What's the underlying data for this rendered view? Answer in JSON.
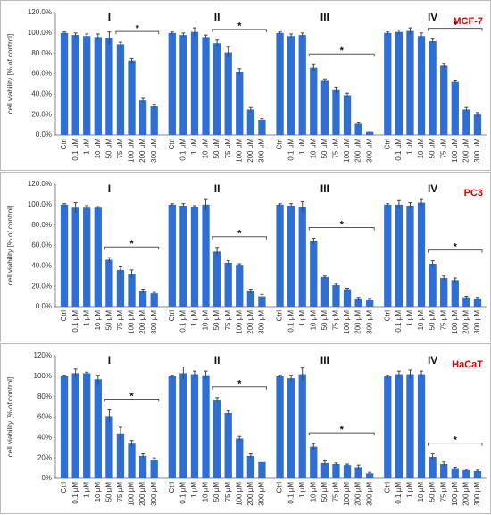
{
  "chart_data": [
    {
      "type": "bar",
      "title": "MCF-7",
      "ylabel": "cell viability [% of control]",
      "categories": [
        "Ctrl",
        "0.1 µM",
        "1 µM",
        "10 µM",
        "50 µM",
        "75 µM",
        "100 µM",
        "200 µM",
        "300 µM"
      ],
      "ylim": [
        0,
        120
      ],
      "yticks": [
        {
          "value": 0,
          "label": "0.0%"
        },
        {
          "value": 20,
          "label": "20.0%"
        },
        {
          "value": 40,
          "label": "40.0%"
        },
        {
          "value": 60,
          "label": "60.0%"
        },
        {
          "value": 80,
          "label": "80.0%"
        },
        {
          "value": 100,
          "label": "100.0%"
        },
        {
          "value": 120,
          "label": "120.0%"
        }
      ],
      "series": [
        {
          "name": "I",
          "color": "#2f6fd4",
          "values": [
            100,
            98,
            97,
            96,
            95,
            89,
            73,
            34,
            28
          ],
          "errors": [
            1,
            2,
            2,
            3,
            6,
            2,
            2,
            2,
            2
          ],
          "bracket": {
            "label": "*",
            "start": "75 µM",
            "end": "300 µM"
          }
        },
        {
          "name": "II",
          "color": "#2f6fd4",
          "values": [
            100,
            98,
            101,
            96,
            90,
            81,
            62,
            25,
            15
          ],
          "errors": [
            1,
            2,
            4,
            2,
            3,
            5,
            3,
            2,
            1
          ],
          "bracket": {
            "label": "*",
            "start": "50 µM",
            "end": "300 µM"
          }
        },
        {
          "name": "III",
          "color": "#2f6fd4",
          "values": [
            100,
            97,
            98,
            66,
            53,
            44,
            39,
            11,
            3
          ],
          "errors": [
            1,
            2,
            2,
            3,
            2,
            3,
            2,
            1,
            1
          ],
          "bracket": {
            "label": "*",
            "start": "10 µM",
            "end": "300 µM"
          }
        },
        {
          "name": "IV",
          "color": "#2f6fd4",
          "values": [
            100,
            101,
            102,
            97,
            92,
            68,
            52,
            25,
            20
          ],
          "errors": [
            1,
            2,
            3,
            3,
            2,
            2,
            1,
            2,
            2
          ],
          "bracket": {
            "label": "*",
            "start": "50 µM",
            "end": "300 µM"
          }
        }
      ]
    },
    {
      "type": "bar",
      "title": "PC3",
      "ylabel": "cell viability [% of control]",
      "categories": [
        "Ctrl",
        "0.1 µM",
        "1 µM",
        "10 µM",
        "50 µM",
        "75 µM",
        "100 µM",
        "200 µM",
        "300 µM"
      ],
      "ylim": [
        0,
        120
      ],
      "yticks": [
        {
          "value": 0,
          "label": "0.0%"
        },
        {
          "value": 20,
          "label": "20.0%"
        },
        {
          "value": 40,
          "label": "40.0%"
        },
        {
          "value": 60,
          "label": "60.0%"
        },
        {
          "value": 80,
          "label": "80.0%"
        },
        {
          "value": 100,
          "label": "100.0%"
        },
        {
          "value": 120,
          "label": "120.0%"
        }
      ],
      "series": [
        {
          "name": "I",
          "color": "#2f6fd4",
          "values": [
            100,
            97,
            97,
            97,
            46,
            36,
            32,
            15,
            13
          ],
          "errors": [
            1,
            5,
            2,
            1,
            2,
            3,
            4,
            2,
            1
          ],
          "bracket": {
            "label": "*",
            "start": "50 µM",
            "end": "300 µM"
          }
        },
        {
          "name": "II",
          "color": "#2f6fd4",
          "values": [
            100,
            99,
            98,
            100,
            54,
            43,
            41,
            15,
            10
          ],
          "errors": [
            1,
            2,
            1,
            5,
            4,
            2,
            1,
            2,
            2
          ],
          "bracket": {
            "label": "*",
            "start": "50 µM",
            "end": "300 µM"
          }
        },
        {
          "name": "III",
          "color": "#2f6fd4",
          "values": [
            100,
            99,
            98,
            64,
            29,
            21,
            17,
            8,
            7
          ],
          "errors": [
            1,
            2,
            5,
            3,
            1,
            1,
            1,
            1,
            1
          ],
          "bracket": {
            "label": "*",
            "start": "10 µM",
            "end": "300 µM"
          }
        },
        {
          "name": "IV",
          "color": "#2f6fd4",
          "values": [
            100,
            100,
            99,
            102,
            42,
            28,
            26,
            9,
            8
          ],
          "errors": [
            1,
            4,
            3,
            3,
            3,
            2,
            2,
            1,
            1
          ],
          "bracket": {
            "label": "*",
            "start": "50 µM",
            "end": "300 µM"
          }
        }
      ]
    },
    {
      "type": "bar",
      "title": "HaCaT",
      "ylabel": "cell viability [% of control]",
      "categories": [
        "Ctrl",
        "0.1 µM",
        "1 µM",
        "10 µM",
        "50 µM",
        "75 µM",
        "100 µM",
        "200 µM",
        "300 µM"
      ],
      "ylim": [
        0,
        120
      ],
      "yticks": [
        {
          "value": 0,
          "label": "0%"
        },
        {
          "value": 20,
          "label": "20%"
        },
        {
          "value": 40,
          "label": "40%"
        },
        {
          "value": 60,
          "label": "60%"
        },
        {
          "value": 80,
          "label": "80%"
        },
        {
          "value": 100,
          "label": "100%"
        },
        {
          "value": 120,
          "label": "120%"
        }
      ],
      "series": [
        {
          "name": "I",
          "color": "#2f6fd4",
          "values": [
            100,
            103,
            103,
            97,
            61,
            44,
            34,
            22,
            18
          ],
          "errors": [
            1,
            4,
            1,
            4,
            6,
            6,
            3,
            2,
            2
          ],
          "bracket": {
            "label": "*",
            "start": "50 µM",
            "end": "300 µM"
          }
        },
        {
          "name": "II",
          "color": "#2f6fd4",
          "values": [
            100,
            103,
            102,
            101,
            77,
            64,
            39,
            22,
            16
          ],
          "errors": [
            1,
            6,
            3,
            4,
            2,
            2,
            2,
            2,
            2
          ],
          "bracket": {
            "label": "*",
            "start": "50 µM",
            "end": "300 µM"
          }
        },
        {
          "name": "III",
          "color": "#2f6fd4",
          "values": [
            100,
            98,
            102,
            31,
            15,
            14,
            13,
            11,
            5
          ],
          "errors": [
            1,
            3,
            6,
            3,
            2,
            1,
            1,
            2,
            1
          ],
          "bracket": {
            "label": "*",
            "start": "10 µM",
            "end": "300 µM"
          }
        },
        {
          "name": "IV",
          "color": "#2f6fd4",
          "values": [
            100,
            102,
            102,
            102,
            21,
            14,
            10,
            8,
            7
          ],
          "errors": [
            1,
            3,
            4,
            3,
            3,
            2,
            1,
            1,
            1
          ],
          "bracket": {
            "label": "*",
            "start": "50 µM",
            "end": "300 µM"
          }
        }
      ]
    }
  ]
}
